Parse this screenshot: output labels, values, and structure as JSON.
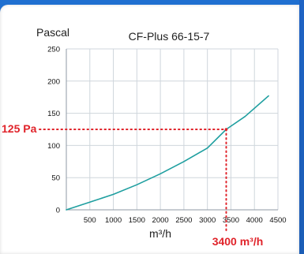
{
  "chart_data": {
    "type": "line",
    "title": "CF-Plus 66-15-7",
    "ylabel": "Pascal",
    "xlabel": "m³/h",
    "xlim": [
      0,
      4500
    ],
    "ylim": [
      0,
      250
    ],
    "x_ticks": [
      500,
      1000,
      1500,
      2000,
      2500,
      3000,
      3500,
      4000,
      4500
    ],
    "y_ticks": [
      0,
      50,
      100,
      150,
      200,
      250
    ],
    "grid": true,
    "series": [
      {
        "values": [
          [
            0,
            0
          ],
          [
            500,
            12
          ],
          [
            1000,
            24
          ],
          [
            1500,
            39
          ],
          [
            2000,
            56
          ],
          [
            2500,
            75
          ],
          [
            3000,
            96
          ],
          [
            3400,
            125
          ],
          [
            3800,
            145
          ],
          [
            4300,
            177
          ]
        ]
      }
    ],
    "annotations": {
      "y_marker_label": "125 Pa",
      "y_marker_value": 125,
      "x_marker_label": "3400 m³/h",
      "x_marker_value": 3400
    },
    "colors": {
      "line": "#1f9fa0",
      "marker": "#e0232a",
      "grid": "#cfd6dc",
      "background": "#1f6fd0"
    }
  }
}
